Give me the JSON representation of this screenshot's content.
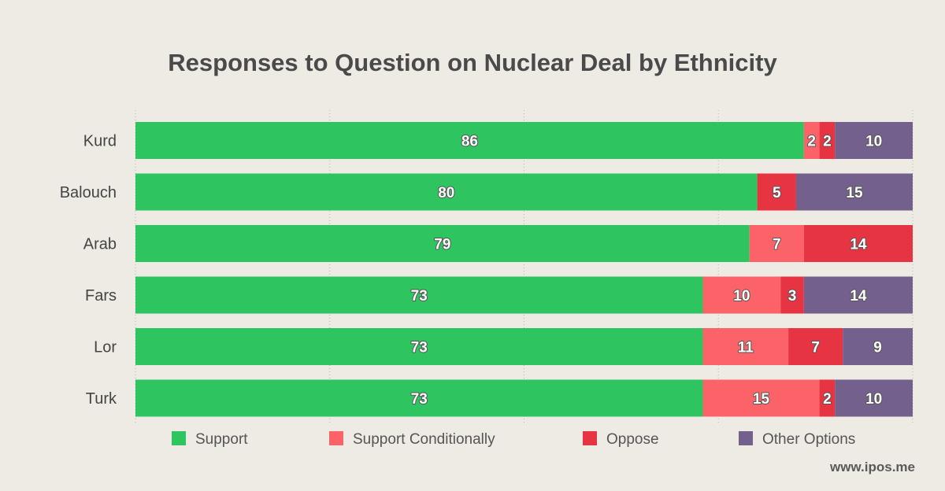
{
  "chart_data": {
    "type": "bar",
    "orientation": "horizontal",
    "stacked": true,
    "title": "Responses to Question on Nuclear Deal by Ethnicity",
    "categories": [
      "Kurd",
      "Balouch",
      "Arab",
      "Fars",
      "Lor",
      "Turk"
    ],
    "series": [
      {
        "name": "Support",
        "color": "#2ec45f",
        "values": [
          86,
          80,
          79,
          73,
          73,
          73
        ]
      },
      {
        "name": "Support Conditionally",
        "color": "#fb6368",
        "values": [
          2,
          0,
          7,
          10,
          11,
          15
        ]
      },
      {
        "name": "Oppose",
        "color": "#e63442",
        "values": [
          2,
          5,
          14,
          3,
          7,
          2
        ]
      },
      {
        "name": "Other Options",
        "color": "#74608c",
        "values": [
          10,
          15,
          0,
          14,
          9,
          10
        ]
      }
    ],
    "xlim": [
      0,
      100
    ],
    "grid": "vertical dotted",
    "legend": "bottom"
  },
  "footer": "www.ipos.me"
}
